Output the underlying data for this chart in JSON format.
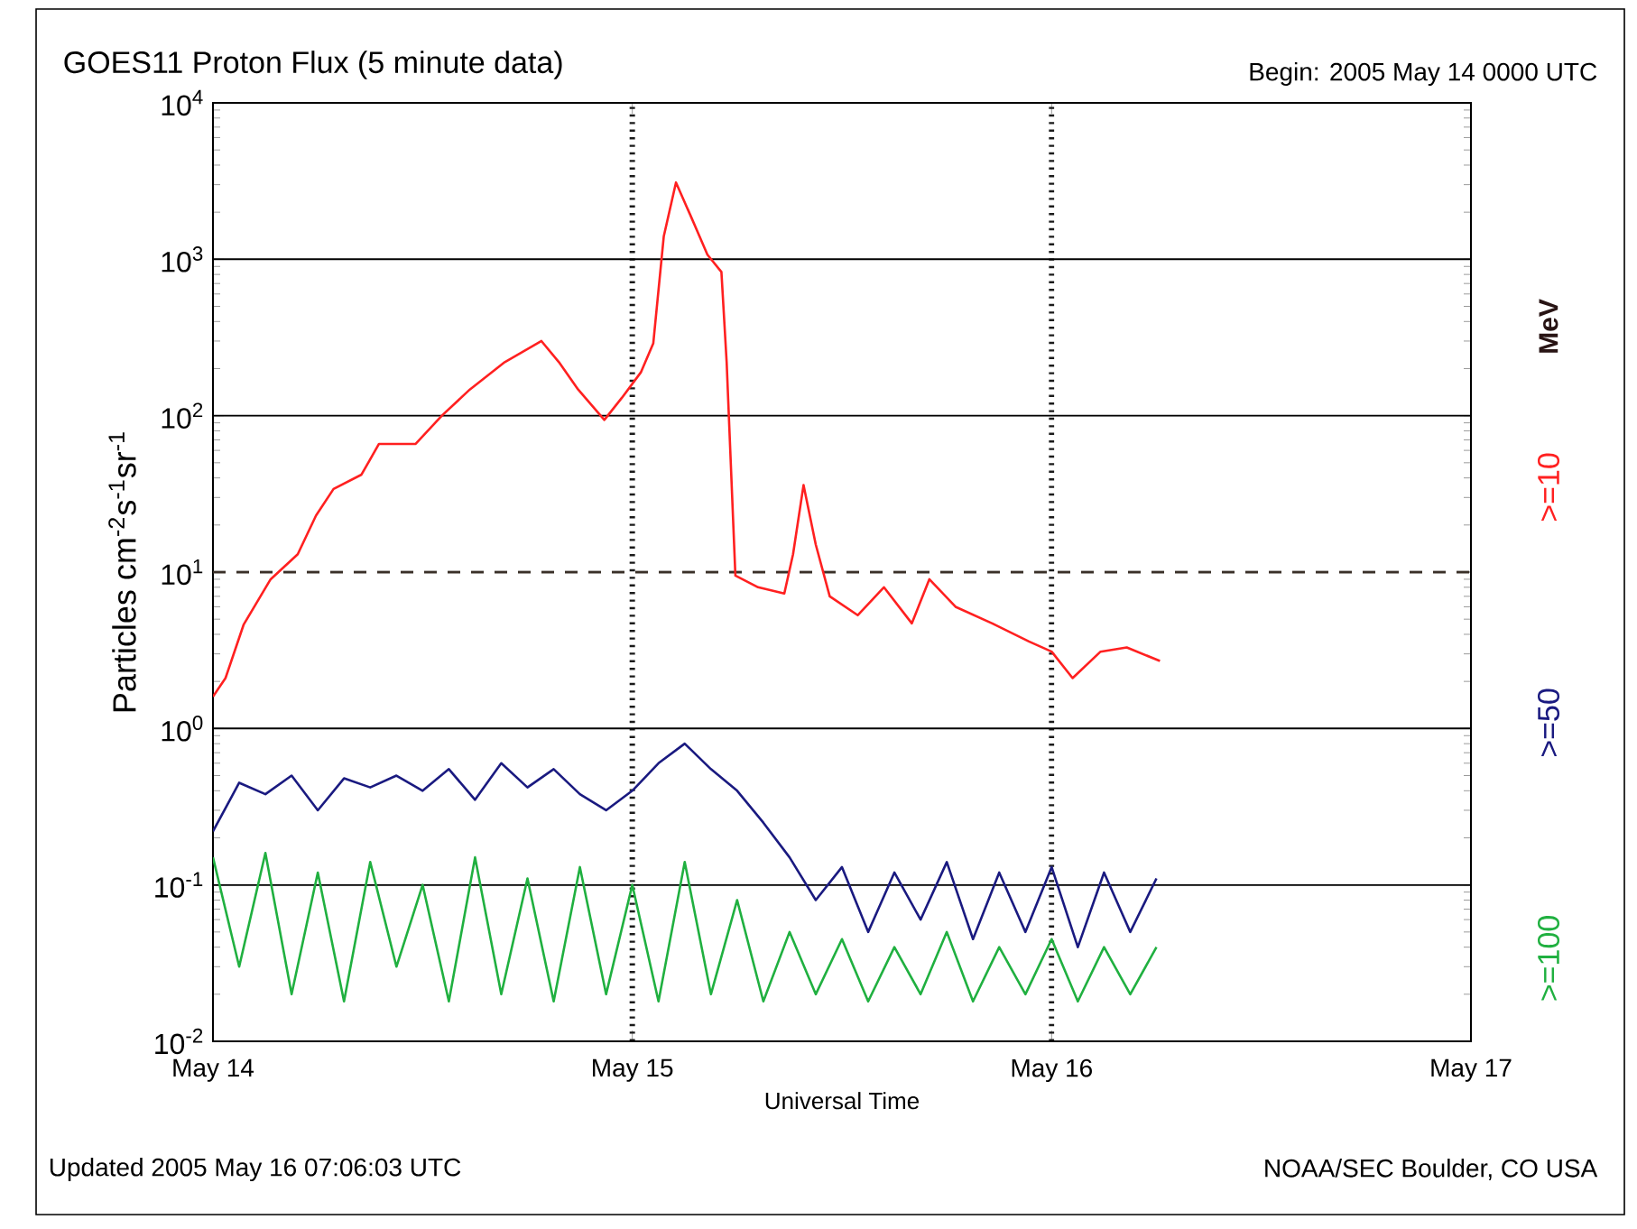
{
  "chart_data": {
    "type": "line",
    "title": "GOES11 Proton Flux (5 minute data)",
    "subtitle": "Begin: 2005 May 14 0000 UTC",
    "xlabel": "Universal Time",
    "ylabel": "Particles cm$^{-2}$s$^{-1}$sr$^{-1}$",
    "legend_title": "MeV",
    "annotations": [
      "Updated 2005 May 16 07:06:03 UTC",
      "NOAA/SEC Boulder, CO USA"
    ],
    "log": true,
    "grid": "y",
    "legend": "right",
    "marker": "none",
    "line_style": "solid",
    "xlim": [
      "2005-05-14",
      "2005-05-17"
    ],
    "xticks": [
      {
        "value": "2005-05-14",
        "label": "May 14"
      },
      {
        "value": "2005-05-15",
        "label": "May 15"
      },
      {
        "value": "2005-05-16",
        "label": "May 16"
      },
      {
        "value": "2005-05-17",
        "label": "May 17"
      }
    ],
    "ylim": [
      0.01,
      10000
    ],
    "yticks": [
      {
        "value": 0.01,
        "label": "10$^{-2}$"
      },
      {
        "value": 0.1,
        "label": "10$^{-1}$"
      },
      {
        "value": 1,
        "label": "10$^{0}$"
      },
      {
        "value": 10,
        "label": "10$^{1}$"
      },
      {
        "value": 100,
        "label": "10$^{2}$"
      },
      {
        "value": 1000,
        "label": "10$^{3}$"
      },
      {
        "value": 10000,
        "label": "10$^{4}$"
      }
    ],
    "ref_lines": [
      {
        "axis": "y",
        "value": 10,
        "line_style": "dashed",
        "color": "#3a3028"
      },
      {
        "axis": "x",
        "value": "2005-05-15",
        "line_style": "dotted",
        "color": "#1a1a1a"
      },
      {
        "axis": "x",
        "value": "2005-05-16",
        "line_style": "dotted",
        "color": "#1a1a1a"
      }
    ],
    "x": [
      "2005-05-14T00:00",
      "2005-05-14T01:30",
      "2005-05-14T03:00",
      "2005-05-14T04:30",
      "2005-05-14T06:00",
      "2005-05-14T07:30",
      "2005-05-14T09:00",
      "2005-05-14T10:30",
      "2005-05-14T12:00",
      "2005-05-14T13:30",
      "2005-05-14T15:00",
      "2005-05-14T16:30",
      "2005-05-14T18:00",
      "2005-05-14T19:30",
      "2005-05-14T21:00",
      "2005-05-14T22:30",
      "2005-05-15T00:00",
      "2005-05-15T01:30",
      "2005-05-15T03:00",
      "2005-05-15T04:30",
      "2005-05-15T06:00",
      "2005-05-15T07:30",
      "2005-05-15T09:00",
      "2005-05-15T10:30",
      "2005-05-15T12:00",
      "2005-05-15T13:30",
      "2005-05-15T15:00",
      "2005-05-15T16:30",
      "2005-05-15T18:00",
      "2005-05-15T19:30",
      "2005-05-15T21:00",
      "2005-05-15T22:30",
      "2005-05-16T00:00",
      "2005-05-16T01:30",
      "2005-05-16T03:00",
      "2005-05-16T04:30",
      "2005-05-16T06:00"
    ],
    "series": [
      {
        "name": ">=10",
        "color": "#ff2020",
        "x": [
          "2005-05-14T00:00",
          "2005-05-14T00:43",
          "2005-05-14T01:45",
          "2005-05-14T03:18",
          "2005-05-14T04:51",
          "2005-05-14T05:54",
          "2005-05-14T06:54",
          "2005-05-14T08:30",
          "2005-05-14T09:30",
          "2005-05-14T11:36",
          "2005-05-14T13:06",
          "2005-05-14T14:42",
          "2005-05-14T16:42",
          "2005-05-14T18:48",
          "2005-05-14T19:48",
          "2005-05-14T20:54",
          "2005-05-14T22:24",
          "2005-05-14T23:24",
          "2005-05-15T00:30",
          "2005-05-15T01:12",
          "2005-05-15T01:48",
          "2005-05-15T02:30",
          "2005-05-15T03:24",
          "2005-05-15T04:18",
          "2005-05-15T05:06",
          "2005-05-15T05:24",
          "2005-05-15T05:54",
          "2005-05-15T07:12",
          "2005-05-15T08:42",
          "2005-05-15T09:12",
          "2005-05-15T09:48",
          "2005-05-15T10:30",
          "2005-05-15T11:18",
          "2005-05-15T12:54",
          "2005-05-15T14:24",
          "2005-05-15T16:00",
          "2005-05-15T17:00",
          "2005-05-15T18:30",
          "2005-05-15T20:36",
          "2005-05-15T22:42",
          "2005-05-16T00:00",
          "2005-05-16T01:12",
          "2005-05-16T02:48",
          "2005-05-16T04:18",
          "2005-05-16T06:12"
        ],
        "values": [
          1.6,
          2.1,
          4.6,
          9,
          13,
          23,
          34,
          42,
          66,
          66,
          100,
          147,
          220,
          300,
          220,
          147,
          94,
          130,
          190,
          290,
          1400,
          3100,
          1830,
          1070,
          830,
          220,
          9.5,
          8,
          7.3,
          13,
          36,
          15,
          7,
          5.3,
          8,
          4.7,
          9,
          6,
          4.7,
          3.6,
          3.1,
          2.1,
          3.1,
          3.3,
          2.7
        ]
      },
      {
        "name": ">=50",
        "color": "#1a1a80",
        "values": [
          0.22,
          0.45,
          0.38,
          0.5,
          0.3,
          0.48,
          0.42,
          0.5,
          0.4,
          0.55,
          0.35,
          0.6,
          0.42,
          0.55,
          0.38,
          0.3,
          0.4,
          0.6,
          0.8,
          0.55,
          0.4,
          0.25,
          0.15,
          0.08,
          0.13,
          0.05,
          0.12,
          0.06,
          0.14,
          0.045,
          0.12,
          0.05,
          0.13,
          0.04,
          0.12,
          0.05,
          0.11
        ]
      },
      {
        "name": ">=100",
        "color": "#20b040",
        "values": [
          0.15,
          0.03,
          0.16,
          0.02,
          0.12,
          0.018,
          0.14,
          0.03,
          0.1,
          0.018,
          0.15,
          0.02,
          0.11,
          0.018,
          0.13,
          0.02,
          0.1,
          0.018,
          0.14,
          0.02,
          0.08,
          0.018,
          0.05,
          0.02,
          0.045,
          0.018,
          0.04,
          0.02,
          0.05,
          0.018,
          0.04,
          0.02,
          0.045,
          0.018,
          0.04,
          0.02,
          0.04
        ]
      }
    ]
  }
}
